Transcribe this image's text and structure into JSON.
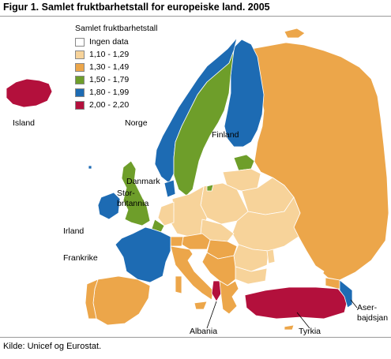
{
  "title": "Figur 1. Samlet fruktbarhetstall for europeiske land. 2005",
  "source": "Kilde: Unicef og Eurostat.",
  "legend": {
    "title": "Samlet fruktbarhetstall",
    "items": [
      {
        "label": "Ingen data",
        "color": "#ffffff"
      },
      {
        "label": "1,10 - 1,29",
        "color": "#f7d39a"
      },
      {
        "label": "1,30 - 1,49",
        "color": "#eca64a"
      },
      {
        "label": "1,50 - 1,79",
        "color": "#6e9e2a"
      },
      {
        "label": "1,80 - 1,99",
        "color": "#1d6bb3"
      },
      {
        "label": "2,00 - 2,20",
        "color": "#b3103c"
      }
    ]
  },
  "map_labels": {
    "island": "Island",
    "norge": "Norge",
    "finland": "Finland",
    "danmark": "Danmark",
    "storbritannia": "Stor-\nbritannia",
    "storbritannia_line1": "Stor-",
    "storbritannia_line2": "britannia",
    "irland": "Irland",
    "frankrike": "Frankrike",
    "albania": "Albania",
    "tyrkia": "Tyrkia",
    "aserbajdsjan_line1": "Aser-",
    "aserbajdsjan_line2": "bajdsjan"
  },
  "colors": {
    "sea": "#ffffff",
    "border": "#ffffff",
    "outline": "#9a9a9a"
  }
}
